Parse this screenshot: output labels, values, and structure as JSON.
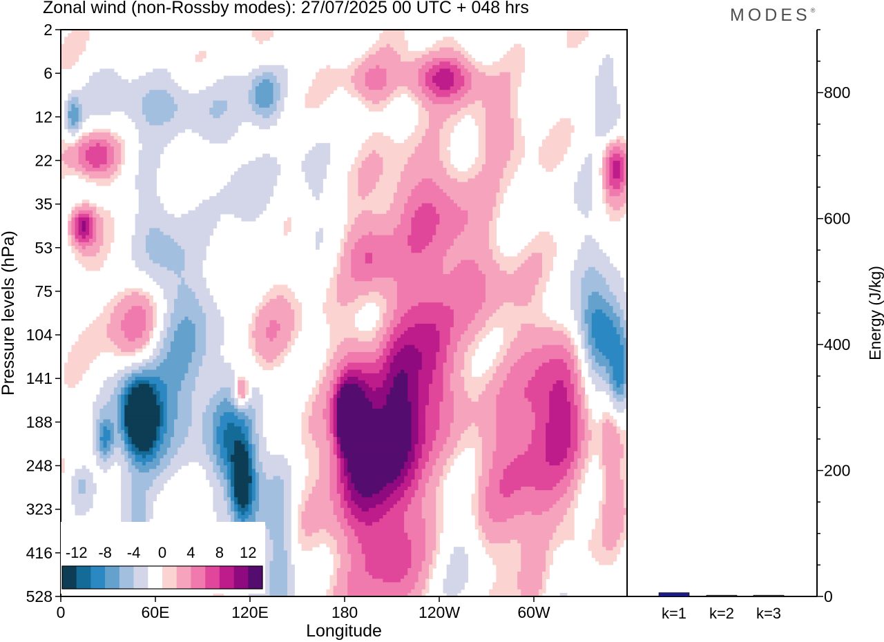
{
  "title": "Zonal wind (non-Rossby modes):  27/07/2025  00 UTC  + 048 hrs",
  "brand": {
    "text": "MODES",
    "mark": "®"
  },
  "chart_data": [
    {
      "type": "heatmap",
      "title": "Zonal wind (non-Rossby modes):  27/07/2025  00 UTC  + 048 hrs",
      "xlabel": "Longitude",
      "ylabel": "Pressure levels (hPa)",
      "xticks": [
        "0",
        "60E",
        "120E",
        "180",
        "120W",
        "60W"
      ],
      "xrange": [
        0,
        360
      ],
      "yticks": [
        "2",
        "6",
        "12",
        "22",
        "35",
        "53",
        "75",
        "104",
        "141",
        "188",
        "248",
        "323",
        "416",
        "528"
      ],
      "colorbar": {
        "labels": [
          "-12",
          "-8",
          "-4",
          "0",
          "4",
          "8",
          "12"
        ],
        "colors": [
          "#0d3d55",
          "#156b98",
          "#2c88c2",
          "#64a1cd",
          "#a3bfe0",
          "#d3d6e9",
          "#ffffff",
          "#fbd4d2",
          "#f6a4bd",
          "#f07aad",
          "#e0479a",
          "#bd1c8a",
          "#8e0a7e",
          "#550c6f"
        ]
      },
      "blobs": [
        {
          "lon": 28,
          "lev": 9.4,
          "rx": 6,
          "ry": 0.55,
          "v": -8
        },
        {
          "lon": 14,
          "lev": 4.5,
          "rx": 8,
          "ry": 0.45,
          "v": 11
        },
        {
          "lon": 8,
          "lev": 2.0,
          "rx": 5,
          "ry": 0.45,
          "v": -7
        },
        {
          "lon": 22,
          "lev": 2.9,
          "rx": 14,
          "ry": 0.5,
          "v": 8
        },
        {
          "lon": 60,
          "lev": 1.7,
          "rx": 40,
          "ry": 0.7,
          "v": -5
        },
        {
          "lon": 48,
          "lev": 6.8,
          "rx": 18,
          "ry": 1.2,
          "v": 6
        },
        {
          "lon": 60,
          "lev": 4.8,
          "rx": 15,
          "ry": 1.5,
          "v": -4
        },
        {
          "lon": 115,
          "lev": 3.2,
          "rx": 18,
          "ry": 1.8,
          "v": -3
        },
        {
          "lon": 130,
          "lev": 1.5,
          "rx": 10,
          "ry": 0.6,
          "v": -7
        },
        {
          "lon": 198,
          "lev": 1.2,
          "rx": 16,
          "ry": 0.55,
          "v": 4
        },
        {
          "lon": 242,
          "lev": 1.1,
          "rx": 22,
          "ry": 0.55,
          "v": 9
        },
        {
          "lon": 232,
          "lev": 4.0,
          "rx": 32,
          "ry": 1.2,
          "v": 5
        },
        {
          "lon": 196,
          "lev": 5.2,
          "rx": 16,
          "ry": 0.8,
          "v": 5
        },
        {
          "lon": 338,
          "lev": 6.5,
          "rx": 12,
          "ry": 3.0,
          "v": -4
        },
        {
          "lon": 350,
          "lev": 2.2,
          "rx": 10,
          "ry": 1.0,
          "v": -5
        },
        {
          "lon": 352,
          "lev": 3.1,
          "rx": 9,
          "ry": 0.7,
          "v": 11
        },
        {
          "lon": 12,
          "lev": 10.4,
          "rx": 8,
          "ry": 0.5,
          "v": -4
        },
        {
          "lon": 50,
          "lev": 11.5,
          "rx": 6,
          "ry": 1.0,
          "v": -2
        },
        {
          "lon": 52,
          "lev": 8.8,
          "rx": 18,
          "ry": 1.2,
          "v": -9
        },
        {
          "lon": 50,
          "lev": 8.9,
          "rx": 10,
          "ry": 0.8,
          "v": -15
        },
        {
          "lon": 80,
          "lev": 7.5,
          "rx": 24,
          "ry": 2.4,
          "v": -6
        },
        {
          "lon": 105,
          "lev": 9.5,
          "rx": 10,
          "ry": 1.0,
          "v": -6
        },
        {
          "lon": 118,
          "lev": 10.1,
          "rx": 12,
          "ry": 2.0,
          "v": -8
        },
        {
          "lon": 115,
          "lev": 10.3,
          "rx": 6,
          "ry": 0.8,
          "v": -11
        },
        {
          "lon": 140,
          "lev": 12.3,
          "rx": 9,
          "ry": 2.2,
          "v": -6
        },
        {
          "lon": 115,
          "lev": 8.3,
          "rx": 5,
          "ry": 0.4,
          "v": 9
        },
        {
          "lon": 130,
          "lev": 6.8,
          "rx": 22,
          "ry": 1.0,
          "v": 3
        },
        {
          "lon": 186,
          "lev": 9.0,
          "rx": 12,
          "ry": 1.5,
          "v": 10
        },
        {
          "lon": 182,
          "lev": 8.9,
          "rx": 6,
          "ry": 0.6,
          "v": 14
        },
        {
          "lon": 200,
          "lev": 9.6,
          "rx": 22,
          "ry": 1.8,
          "v": 8
        },
        {
          "lon": 218,
          "lev": 8.6,
          "rx": 14,
          "ry": 2.0,
          "v": 9
        },
        {
          "lon": 236,
          "lev": 7.6,
          "rx": 14,
          "ry": 1.6,
          "v": 7
        },
        {
          "lon": 200,
          "lev": 11.2,
          "rx": 38,
          "ry": 2.6,
          "v": 4
        },
        {
          "lon": 252,
          "lev": 5.8,
          "rx": 36,
          "ry": 1.3,
          "v": 4
        },
        {
          "lon": 295,
          "lev": 10.0,
          "rx": 34,
          "ry": 2.5,
          "v": 6
        },
        {
          "lon": 318,
          "lev": 8.5,
          "rx": 18,
          "ry": 1.5,
          "v": 7
        },
        {
          "lon": 350,
          "lev": 9.6,
          "rx": 8,
          "ry": 1.8,
          "v": 4
        },
        {
          "lon": 345,
          "lev": 6.9,
          "rx": 16,
          "ry": 0.9,
          "v": -8
        },
        {
          "lon": 355,
          "lev": 8.1,
          "rx": 7,
          "ry": 0.9,
          "v": -8
        },
        {
          "lon": 210,
          "lev": 12.4,
          "rx": 18,
          "ry": 1.0,
          "v": 3
        },
        {
          "lon": 255,
          "lev": 12.0,
          "rx": 16,
          "ry": 1.6,
          "v": -3
        },
        {
          "lon": 315,
          "lev": 12.5,
          "rx": 10,
          "ry": 1.2,
          "v": -3
        },
        {
          "lon": 45,
          "lev": 11.3,
          "rx": 14,
          "ry": 0.9,
          "v": -3
        },
        {
          "lon": 160,
          "lev": 3.5,
          "rx": 12,
          "ry": 1.2,
          "v": -3
        },
        {
          "lon": 280,
          "lev": 2.3,
          "rx": 20,
          "ry": 0.8,
          "v": 3
        }
      ]
    },
    {
      "type": "bar",
      "categories": [
        "k=1",
        "k=2",
        "k=3"
      ],
      "values": [
        6,
        2,
        2
      ],
      "ylabel": "Energy (J/kg)",
      "yticks": [
        "0",
        "200",
        "400",
        "600",
        "800"
      ],
      "ylim": [
        0,
        900
      ]
    }
  ]
}
